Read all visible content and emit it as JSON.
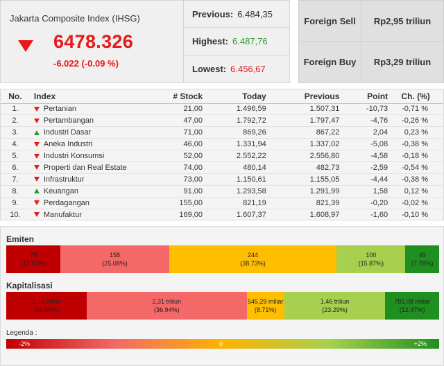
{
  "summary": {
    "title": "Jakarta Composite Index (IHSG)",
    "value": "6478.326",
    "change": "-6.022 (-0.09 %)",
    "direction": "down",
    "previous_label": "Previous:",
    "previous_value": "6.484,35",
    "highest_label": "Highest:",
    "highest_value": "6.487,76",
    "lowest_label": "Lowest:",
    "lowest_value": "6.456,67"
  },
  "foreign": {
    "sell_label": "Foreign Sell",
    "sell_value": "Rp2,95 triliun",
    "buy_label": "Foreign Buy",
    "buy_value": "Rp3,29 triliun"
  },
  "table": {
    "headers": [
      "No.",
      "Index",
      "# Stock",
      "Today",
      "Previous",
      "Point",
      "Ch. (%)"
    ],
    "rows": [
      {
        "no": "1.",
        "dir": "down",
        "index": "Pertanian",
        "stock": "21,00",
        "today": "1.496,59",
        "previous": "1.507,31",
        "point": "-10,73",
        "ch": "-0,71 %"
      },
      {
        "no": "2.",
        "dir": "down",
        "index": "Pertambangan",
        "stock": "47,00",
        "today": "1.792,72",
        "previous": "1.797,47",
        "point": "-4,76",
        "ch": "-0,26 %"
      },
      {
        "no": "3.",
        "dir": "up",
        "index": "Industri Dasar",
        "stock": "71,00",
        "today": "869,26",
        "previous": "867,22",
        "point": "2,04",
        "ch": "0,23 %"
      },
      {
        "no": "4.",
        "dir": "down",
        "index": "Aneka Industri",
        "stock": "46,00",
        "today": "1.331,94",
        "previous": "1.337,02",
        "point": "-5,08",
        "ch": "-0,38 %"
      },
      {
        "no": "5.",
        "dir": "down",
        "index": "Industri Konsumsi",
        "stock": "52,00",
        "today": "2.552,22",
        "previous": "2.556,80",
        "point": "-4,58",
        "ch": "-0,18 %"
      },
      {
        "no": "6.",
        "dir": "down",
        "index": "Properti dan Real Estate",
        "stock": "74,00",
        "today": "480,14",
        "previous": "482,73",
        "point": "-2,59",
        "ch": "-0,54 %"
      },
      {
        "no": "7.",
        "dir": "down",
        "index": "Infrastruktur",
        "stock": "73,00",
        "today": "1.150,61",
        "previous": "1.155,05",
        "point": "-4,44",
        "ch": "-0,38 %"
      },
      {
        "no": "8.",
        "dir": "up",
        "index": "Keuangan",
        "stock": "91,00",
        "today": "1.293,58",
        "previous": "1.291,99",
        "point": "1,58",
        "ch": "0,12 %"
      },
      {
        "no": "9.",
        "dir": "down",
        "index": "Perdagangan",
        "stock": "155,00",
        "today": "821,19",
        "previous": "821,39",
        "point": "-0,20",
        "ch": "-0,02 %"
      },
      {
        "no": "10.",
        "dir": "down",
        "index": "Manufaktur",
        "stock": "169,00",
        "today": "1.607,37",
        "previous": "1.608,97",
        "point": "-1,60",
        "ch": "-0,10 %"
      }
    ]
  },
  "emiten": {
    "label": "Emiten",
    "segments": [
      {
        "value": "79",
        "pct": "(12.54%)",
        "share": 12.54,
        "color": "#c00000"
      },
      {
        "value": "158",
        "pct": "(25.08%)",
        "share": 25.08,
        "color": "#f46868"
      },
      {
        "value": "244",
        "pct": "(38.73%)",
        "share": 38.73,
        "color": "#ffbf00"
      },
      {
        "value": "100",
        "pct": "(15.87%)",
        "share": 15.87,
        "color": "#a6d04e"
      },
      {
        "value": "49",
        "pct": "(7.78%)",
        "share": 7.78,
        "color": "#1f8f1f"
      }
    ]
  },
  "kapitalisasi": {
    "label": "Kapitalisasi",
    "segments": [
      {
        "value": "1,16 triliun",
        "pct": "(18.59%)",
        "share": 18.59,
        "color": "#c00000"
      },
      {
        "value": "2,31 triliun",
        "pct": "(36.94%)",
        "share": 36.94,
        "color": "#f46868"
      },
      {
        "value": "545,29 miliar",
        "pct": "(8.71%)",
        "share": 8.71,
        "color": "#ffbf00"
      },
      {
        "value": "1,46 triliun",
        "pct": "(23.29%)",
        "share": 23.29,
        "color": "#a6d04e"
      },
      {
        "value": "781,08 miliar",
        "pct": "(12.47%)",
        "share": 12.47,
        "color": "#1f8f1f"
      }
    ]
  },
  "legend": {
    "label": "Legenda :",
    "min": "-2%",
    "mid": "0",
    "max": "+2%"
  }
}
